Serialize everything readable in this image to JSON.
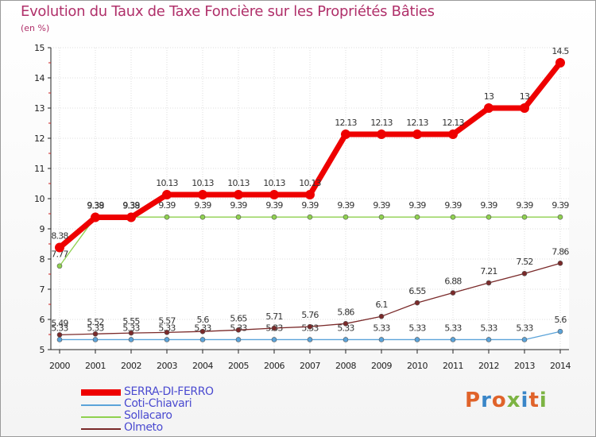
{
  "title": "Evolution du Taux de Taxe Foncière sur les Propriétés Bâties",
  "subtitle": "(en %)",
  "logo": {
    "text": "Proxiti",
    "colors": [
      "#e0632a",
      "#3a86c8",
      "#e0632a",
      "#7cb342",
      "#3a86c8",
      "#e0632a",
      "#7cb342"
    ]
  },
  "chart_data": {
    "type": "line",
    "title": "Evolution du Taux de Taxe Foncière sur les Propriétés Bâties",
    "ylabel": "(en %)",
    "xlabel": "",
    "ylim": [
      5,
      15
    ],
    "yticks": [
      "5",
      "6",
      "7",
      "8",
      "9",
      "10",
      "11",
      "12",
      "13",
      "14",
      "15"
    ],
    "categories": [
      "2000",
      "2001",
      "2002",
      "2003",
      "2004",
      "2005",
      "2006",
      "2007",
      "2008",
      "2009",
      "2010",
      "2011",
      "2012",
      "2013",
      "2014"
    ],
    "series": [
      {
        "name": "Coti-Chiavari",
        "color": "#5ba3d9",
        "values": [
          5.33,
          5.33,
          5.33,
          5.33,
          5.33,
          5.33,
          5.33,
          5.33,
          5.33,
          5.33,
          5.33,
          5.33,
          5.33,
          5.33,
          5.6
        ],
        "labels": [
          "5.33",
          "5.33",
          "5.33",
          "5.33",
          "5.33",
          "5.33",
          "5.33",
          "5.33",
          "5.33",
          "5.33",
          "5.33",
          "5.33",
          "5.33",
          "5.33",
          "5.6"
        ]
      },
      {
        "name": "Olmeto",
        "color": "#7a2a2a",
        "values": [
          5.49,
          5.52,
          5.55,
          5.57,
          5.6,
          5.65,
          5.71,
          5.76,
          5.86,
          6.1,
          6.55,
          6.88,
          7.21,
          7.52,
          7.86
        ],
        "labels": [
          "5.49",
          "5.52",
          "5.55",
          "5.57",
          "5.6",
          "5.65",
          "5.71",
          "5.76",
          "5.86",
          "6.1",
          "6.55",
          "6.88",
          "7.21",
          "7.52",
          "7.86"
        ]
      },
      {
        "name": "Sollacaro",
        "color": "#8fd14f",
        "values": [
          7.77,
          9.39,
          9.39,
          9.39,
          9.39,
          9.39,
          9.39,
          9.39,
          9.39,
          9.39,
          9.39,
          9.39,
          9.39,
          9.39,
          9.39
        ],
        "labels": [
          "7.77",
          "9.39",
          "9.39",
          "9.39",
          "9.39",
          "9.39",
          "9.39",
          "9.39",
          "9.39",
          "9.39",
          "9.39",
          "9.39",
          "9.39",
          "9.39",
          "9.39"
        ]
      },
      {
        "name": "SERRA-DI-FERRO",
        "color": "#ee0000",
        "values": [
          8.38,
          9.38,
          9.38,
          10.13,
          10.13,
          10.13,
          10.13,
          10.13,
          12.13,
          12.13,
          12.13,
          12.13,
          13,
          13,
          14.5
        ],
        "labels": [
          "8.38",
          "9.38",
          "9.38",
          "10.13",
          "10.13",
          "10.13",
          "10.13",
          "10.13",
          "12.13",
          "12.13",
          "12.13",
          "12.13",
          "13",
          "13",
          "14.5"
        ]
      }
    ],
    "legend": {
      "position": "bottom-left",
      "entries": [
        "SERRA-DI-FERRO",
        "Coti-Chiavari",
        "Sollacaro",
        "Olmeto"
      ]
    }
  }
}
